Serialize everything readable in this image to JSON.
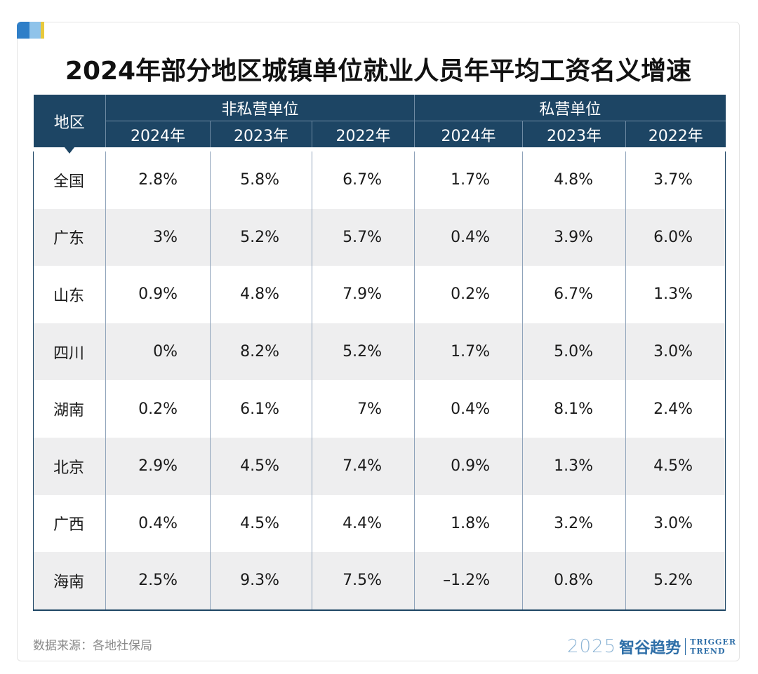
{
  "title": "2024年部分地区城镇单位就业人员年平均工资名义增速",
  "source": "数据来源：各地社保局",
  "logo": {
    "year": "2025",
    "brand": "智谷趋势",
    "en_top": "TRIGGER",
    "en_bottom": "TREND"
  },
  "colors": {
    "header_bg": "#1d4564",
    "stripe": "#eeeeef",
    "accent": "#2f7fc8"
  },
  "chart_data": {
    "type": "table",
    "region_header": "地区",
    "groups": [
      {
        "name": "非私营单位",
        "years": [
          "2024年",
          "2023年",
          "2022年"
        ]
      },
      {
        "name": "私营单位",
        "years": [
          "2024年",
          "2023年",
          "2022年"
        ]
      }
    ],
    "rows": [
      {
        "region": "全国",
        "values": [
          "2.8%",
          "5.8%",
          "6.7%",
          "1.7%",
          "4.8%",
          "3.7%"
        ]
      },
      {
        "region": "广东",
        "values": [
          "3%",
          "5.2%",
          "5.7%",
          "0.4%",
          "3.9%",
          "6.0%"
        ]
      },
      {
        "region": "山东",
        "values": [
          "0.9%",
          "4.8%",
          "7.9%",
          "0.2%",
          "6.7%",
          "1.3%"
        ]
      },
      {
        "region": "四川",
        "values": [
          "0%",
          "8.2%",
          "5.2%",
          "1.7%",
          "5.0%",
          "3.0%"
        ]
      },
      {
        "region": "湖南",
        "values": [
          "0.2%",
          "6.1%",
          "7%",
          "0.4%",
          "8.1%",
          "2.4%"
        ]
      },
      {
        "region": "北京",
        "values": [
          "2.9%",
          "4.5%",
          "7.4%",
          "0.9%",
          "1.3%",
          "4.5%"
        ]
      },
      {
        "region": "广西",
        "values": [
          "0.4%",
          "4.5%",
          "4.4%",
          "1.8%",
          "3.2%",
          "3.0%"
        ]
      },
      {
        "region": "海南",
        "values": [
          "2.5%",
          "9.3%",
          "7.5%",
          "–1.2%",
          "0.8%",
          "5.2%"
        ]
      }
    ]
  }
}
